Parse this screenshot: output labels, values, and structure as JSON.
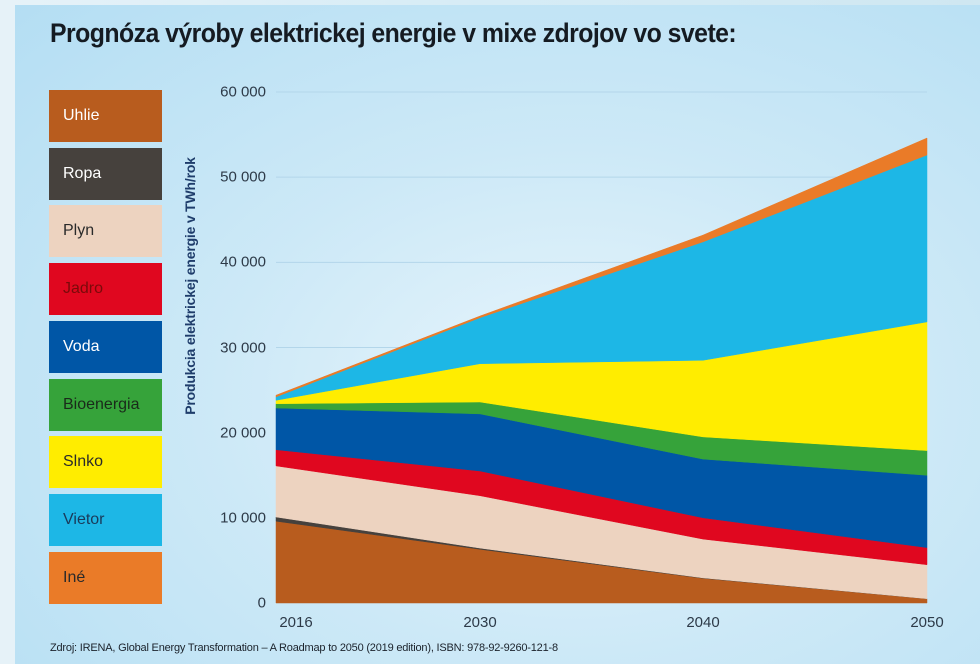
{
  "title": "Prognóza výroby elektrickej energie v mixe zdrojov vo svete:",
  "source": "Zdroj: IRENA, Global Energy Transformation – A Roadmap to 2050 (2019 edition), ISBN: 978-92-9260-121-8",
  "legend": [
    {
      "label": "Uhlie",
      "color": "#b85c1e",
      "text_color": "#ffffff"
    },
    {
      "label": "Ropa",
      "color": "#46413d",
      "text_color": "#ffffff"
    },
    {
      "label": "Plyn",
      "color": "#edd3c0",
      "text_color": "#2a2a2a"
    },
    {
      "label": "Jadro",
      "color": "#e0071f",
      "text_color": "#7a0a0a"
    },
    {
      "label": "Voda",
      "color": "#0056a6",
      "text_color": "#ffffff"
    },
    {
      "label": "Bioenergia",
      "color": "#36a33a",
      "text_color": "#1a2a1a"
    },
    {
      "label": "Slnko",
      "color": "#ffed00",
      "text_color": "#2a2a2a"
    },
    {
      "label": "Vietor",
      "color": "#1db7e6",
      "text_color": "#1a3a5a"
    },
    {
      "label": "Iné",
      "color": "#ea7b28",
      "text_color": "#2a2a2a"
    }
  ],
  "chart_data": {
    "type": "area",
    "stacked": true,
    "title": "Prognóza výroby elektrickej energie v mixe zdrojov vo svete:",
    "xlabel": "",
    "ylabel": "Produkcia elektrickej energie v TWh/rok",
    "categories": [
      "2016",
      "2030",
      "2040",
      "2050"
    ],
    "ylim": [
      0,
      60000
    ],
    "yticks": [
      0,
      10000,
      20000,
      30000,
      40000,
      50000,
      60000
    ],
    "ytick_labels": [
      "0",
      "10 000",
      "20 000",
      "30 000",
      "40 000",
      "50 000",
      "60 000"
    ],
    "grid": true,
    "legend_position": "left",
    "series": [
      {
        "name": "Uhlie",
        "values": [
          9600,
          6300,
          2900,
          500
        ]
      },
      {
        "name": "Ropa",
        "values": [
          500,
          150,
          50,
          0
        ]
      },
      {
        "name": "Plyn",
        "values": [
          6000,
          6150,
          4550,
          4000
        ]
      },
      {
        "name": "Jadro",
        "values": [
          1900,
          2900,
          2500,
          2000
        ]
      },
      {
        "name": "Voda",
        "values": [
          4900,
          6700,
          6900,
          8500
        ]
      },
      {
        "name": "Bioenergia",
        "values": [
          500,
          1400,
          2600,
          2900
        ]
      },
      {
        "name": "Slnko",
        "values": [
          400,
          4500,
          9000,
          15100
        ]
      },
      {
        "name": "Vietor",
        "values": [
          400,
          5400,
          13900,
          19600
        ]
      },
      {
        "name": "Iné",
        "values": [
          200,
          200,
          800,
          2000
        ]
      }
    ]
  }
}
